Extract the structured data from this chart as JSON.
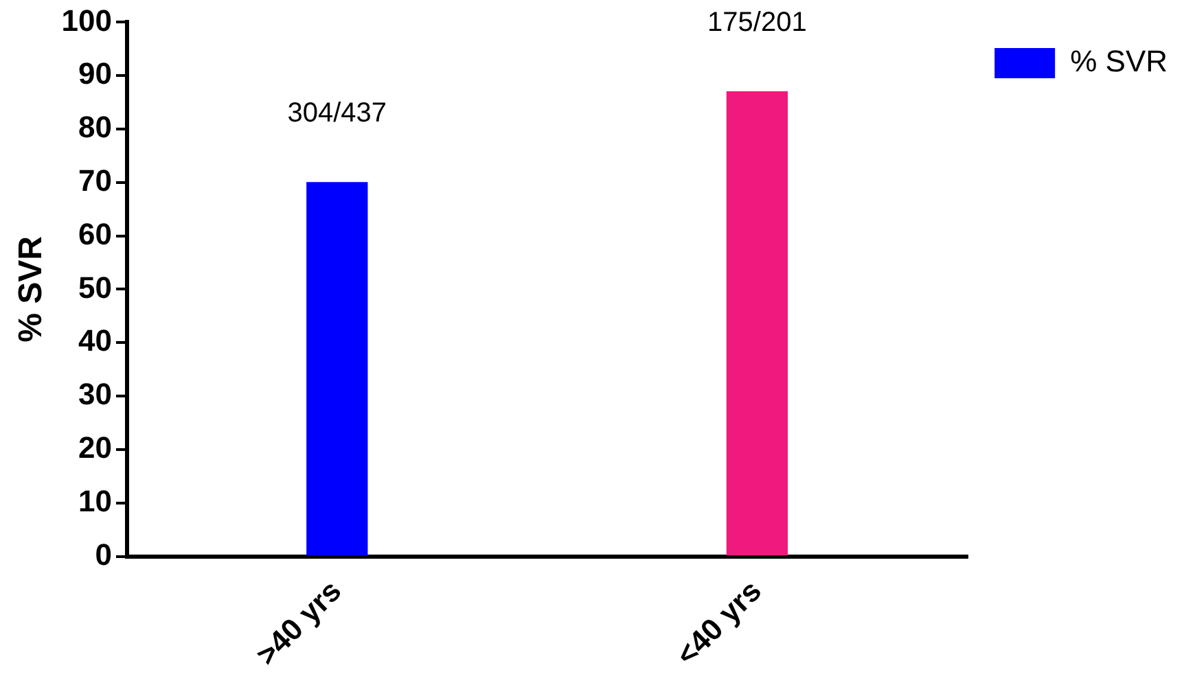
{
  "chart_data": {
    "type": "bar",
    "ylabel": "% SVR",
    "categories": [
      ">40 yrs",
      "<40 yrs"
    ],
    "series": [
      {
        "name": "% SVR",
        "color": "#0000ff",
        "colors": [
          "#0000ff",
          "#f0197d"
        ],
        "values": [
          70,
          87
        ],
        "value_labels": [
          "304/437",
          "175/201"
        ]
      }
    ],
    "ylim": [
      0,
      100
    ],
    "yticks": [
      0,
      10,
      20,
      30,
      40,
      50,
      60,
      70,
      80,
      90,
      100
    ],
    "grid": false,
    "legend": "top right"
  }
}
